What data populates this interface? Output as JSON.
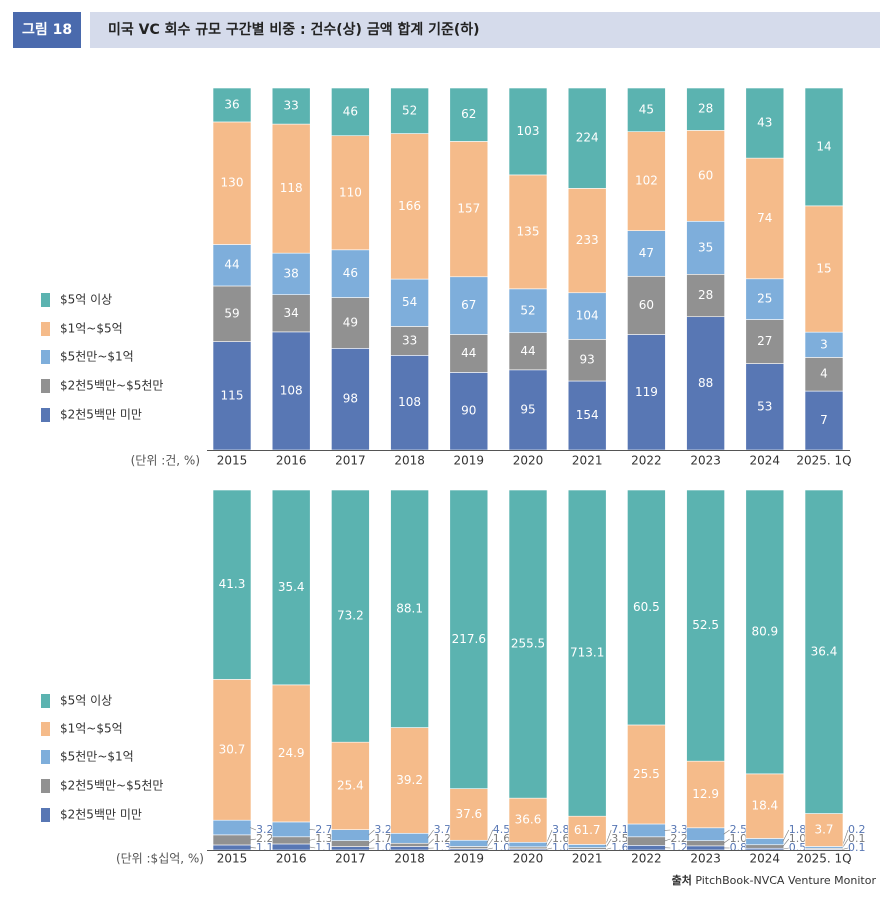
{
  "header": {
    "figure_label": "그림 18",
    "title": "미국 VC 회수 규모 구간별 비중 : 건수(상) 금액 합계 기준(하)"
  },
  "source": {
    "label": "출처",
    "text": "PitchBook-NVCA Venture Monitor"
  },
  "colors": {
    "over_500": "#5bb3b0",
    "100_500": "#f5bb8a",
    "50_100": "#7eaedb",
    "25_50": "#919191",
    "under_25": "#5877b4"
  },
  "chart_data": [
    {
      "type": "bar",
      "stacked": true,
      "normalized": true,
      "unit_label": "(단위 :건, %)",
      "categories": [
        "2015",
        "2016",
        "2017",
        "2018",
        "2019",
        "2020",
        "2021",
        "2022",
        "2023",
        "2024",
        "2025. 1Q"
      ],
      "series": [
        {
          "name": "$2천5백만 미만",
          "key": "under_25",
          "values": [
            115,
            108,
            98,
            108,
            90,
            95,
            154,
            119,
            88,
            53,
            7
          ]
        },
        {
          "name": "$2천5백만~$5천만",
          "key": "25_50",
          "values": [
            59,
            34,
            49,
            33,
            44,
            44,
            93,
            60,
            28,
            27,
            4
          ]
        },
        {
          "name": "$5천만~$1억",
          "key": "50_100",
          "values": [
            44,
            38,
            46,
            54,
            67,
            52,
            104,
            47,
            35,
            25,
            3
          ]
        },
        {
          "name": "$1억~$5억",
          "key": "100_500",
          "values": [
            130,
            118,
            110,
            166,
            157,
            135,
            233,
            102,
            60,
            74,
            15
          ]
        },
        {
          "name": "$5억 이상",
          "key": "over_500",
          "values": [
            36,
            33,
            46,
            52,
            62,
            103,
            224,
            45,
            28,
            43,
            14
          ]
        }
      ],
      "legend": [
        "$5억 이상",
        "$1억~$5억",
        "$5천만~$1억",
        "$2천5백만~$5천만",
        "$2천5백만 미만"
      ],
      "legend_position": "left"
    },
    {
      "type": "bar",
      "stacked": true,
      "normalized": true,
      "unit_label": "(단위 :$십억, %)",
      "categories": [
        "2015",
        "2016",
        "2017",
        "2018",
        "2019",
        "2020",
        "2021",
        "2022",
        "2023",
        "2024",
        "2025. 1Q"
      ],
      "series": [
        {
          "name": "$2천5백만 미만",
          "key": "under_25",
          "values": [
            1.1,
            1.1,
            1.0,
            1.3,
            1.0,
            1.0,
            1.6,
            1.2,
            0.8,
            0.5,
            0.1
          ],
          "labels": [
            "1.1",
            "1.1",
            "1.0",
            "1.3",
            "1.0",
            "1.0",
            "1.6",
            "1.2",
            "0.8",
            "0.5",
            "0.1"
          ]
        },
        {
          "name": "$2천5백만~$5천만",
          "key": "25_50",
          "values": [
            2.2,
            1.3,
            1.7,
            1.2,
            1.6,
            1.6,
            3.5,
            2.2,
            1.0,
            1.0,
            0.1
          ],
          "labels": [
            "2.2",
            "1.3",
            "1.7",
            "1.2",
            "1.6",
            "1.6",
            "3.5",
            "2.2",
            "1.0",
            "1.0",
            "0.1"
          ]
        },
        {
          "name": "$5천만~$1억",
          "key": "50_100",
          "values": [
            3.2,
            2.7,
            3.2,
            3.7,
            4.5,
            3.8,
            7.1,
            3.3,
            2.5,
            1.8,
            0.2
          ],
          "labels": [
            "3.2",
            "2.7",
            "3.2",
            "3.7",
            "4.5",
            "3.8",
            "7.1",
            "3.3",
            "2.5",
            "1.8",
            "0.2"
          ]
        },
        {
          "name": "$1억~$5억",
          "key": "100_500",
          "values": [
            30.7,
            24.9,
            25.4,
            39.2,
            37.6,
            36.6,
            61.7,
            25.5,
            12.9,
            18.4,
            3.7
          ],
          "labels": [
            "30.7",
            "24.9",
            "25.4",
            "39.2",
            "37.6",
            "36.6",
            "61.7",
            "25.5",
            "12.9",
            "18.4",
            "3.7"
          ]
        },
        {
          "name": "$5억 이상",
          "key": "over_500",
          "values": [
            41.3,
            35.4,
            73.2,
            88.1,
            217.6,
            255.5,
            713.1,
            60.5,
            52.5,
            80.9,
            36.4
          ],
          "labels": [
            "41.3",
            "35.4",
            "73.2",
            "88.1",
            "217.6",
            "255.5",
            "713.1",
            "60.5",
            "52.5",
            "80.9",
            "36.4"
          ]
        }
      ],
      "legend": [
        "$5억 이상",
        "$1억~$5억",
        "$5천만~$1억",
        "$2천5백만~$5천만",
        "$2천5백만 미만"
      ],
      "legend_position": "left"
    }
  ]
}
